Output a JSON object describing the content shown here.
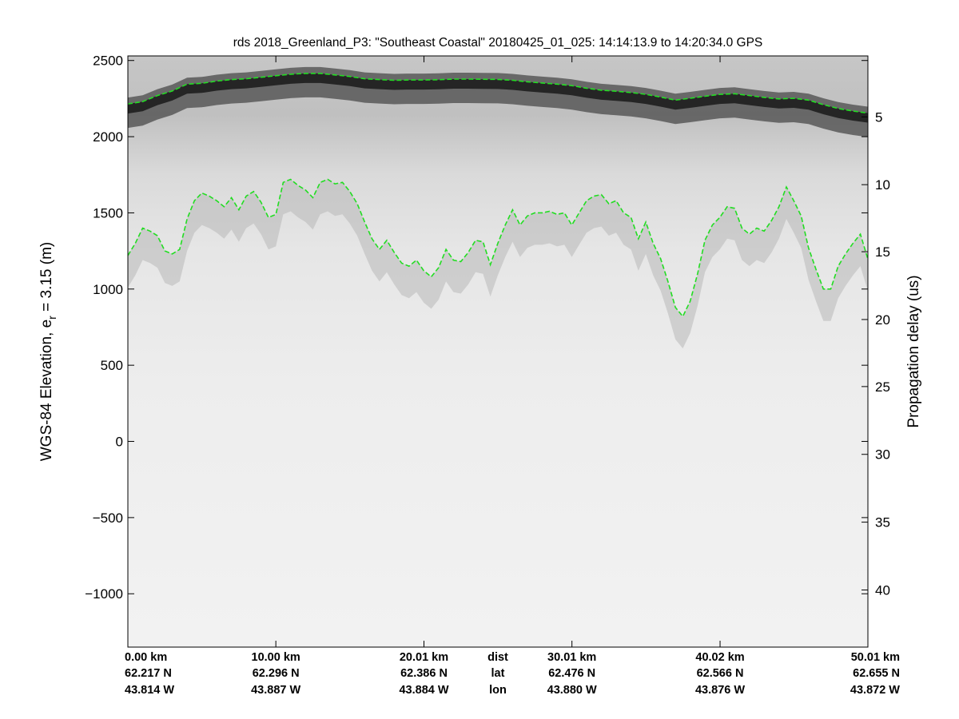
{
  "chart_data": {
    "type": "radar-echogram",
    "title": "rds 2018_Greenland_P3: \"Southeast Coastal\"  20180425_01_025: 14:14:13.9 to 14:20:34.0 GPS",
    "ylabel_main": "WGS-84 Elevation, e",
    "ylabel_sub": "r",
    "ylabel_tail": " = 3.15 (m)",
    "y2label": "Propagation delay (us)",
    "ylim": [
      -1350,
      2530
    ],
    "y_ticks": [
      2500,
      2000,
      1500,
      1000,
      500,
      0,
      -500,
      -1000
    ],
    "y_tick_labels": [
      "2500",
      "2000",
      "1500",
      "1000",
      "500",
      "0",
      "−500",
      "−1000"
    ],
    "delay_ticks": [
      {
        "label": "5",
        "elev": 2130
      },
      {
        "label": "10",
        "elev": 1685
      },
      {
        "label": "15",
        "elev": 1245
      },
      {
        "label": "20",
        "elev": 800
      },
      {
        "label": "25",
        "elev": 360
      },
      {
        "label": "30",
        "elev": -85
      },
      {
        "label": "35",
        "elev": -530
      },
      {
        "label": "40",
        "elev": -975
      }
    ],
    "xlim": [
      0,
      50.01
    ],
    "x_ticks": [
      {
        "x": 0.0,
        "dist": "0.00 km",
        "lat": "62.217 N",
        "lon": "43.814 W"
      },
      {
        "x": 10.0,
        "dist": "10.00 km",
        "lat": "62.296 N",
        "lon": "43.887 W"
      },
      {
        "x": 20.01,
        "dist": "20.01 km",
        "lat": "62.386 N",
        "lon": "43.884 W"
      },
      {
        "x": 30.01,
        "dist": "30.01 km",
        "lat": "62.476 N",
        "lon": "43.880 W"
      },
      {
        "x": 40.02,
        "dist": "40.02 km",
        "lat": "62.566 N",
        "lon": "43.876 W"
      },
      {
        "x": 50.01,
        "dist": "50.01 km",
        "lat": "62.655 N",
        "lon": "43.872 W"
      }
    ],
    "row_labels": {
      "dist": "dist",
      "lat": "lat",
      "lon": "lon"
    },
    "layer_color": "#22dd22",
    "series": [
      {
        "x": [
          0,
          1,
          2,
          3,
          4,
          5,
          6,
          7,
          8,
          9,
          10,
          11,
          12,
          13,
          14,
          15,
          16,
          17,
          18,
          19,
          20,
          21,
          22,
          23,
          24,
          25,
          26,
          27,
          28,
          29,
          30,
          31,
          32,
          33,
          34,
          35,
          36,
          37,
          38,
          39,
          40,
          41,
          42,
          43,
          44,
          45,
          46,
          47,
          48,
          49,
          50
        ],
        "values": [
          2215,
          2230,
          2270,
          2300,
          2345,
          2350,
          2365,
          2375,
          2380,
          2390,
          2400,
          2410,
          2415,
          2415,
          2405,
          2395,
          2380,
          2375,
          2370,
          2372,
          2372,
          2374,
          2378,
          2378,
          2377,
          2376,
          2370,
          2360,
          2352,
          2345,
          2335,
          2318,
          2305,
          2298,
          2290,
          2278,
          2260,
          2240,
          2252,
          2265,
          2278,
          2282,
          2270,
          2258,
          2248,
          2252,
          2240,
          2210,
          2185,
          2168,
          2155
        ]
      },
      {
        "x": [
          0,
          0.5,
          1,
          1.5,
          2,
          2.5,
          3,
          3.5,
          4,
          4.5,
          5,
          5.5,
          6,
          6.5,
          7,
          7.5,
          8,
          8.5,
          9,
          9.5,
          10,
          10.5,
          11,
          11.5,
          12,
          12.5,
          13,
          13.5,
          14,
          14.5,
          15,
          15.5,
          16,
          16.5,
          17,
          17.5,
          18,
          18.5,
          19,
          19.5,
          20,
          20.5,
          21,
          21.5,
          22,
          22.5,
          23,
          23.5,
          24,
          24.5,
          25,
          25.5,
          26,
          26.5,
          27,
          27.5,
          28,
          28.5,
          29,
          29.5,
          30,
          30.5,
          31,
          31.5,
          32,
          32.5,
          33,
          33.5,
          34,
          34.5,
          35,
          35.5,
          36,
          36.5,
          37,
          37.5,
          38,
          38.5,
          39,
          39.5,
          40,
          40.5,
          41,
          41.5,
          42,
          42.5,
          43,
          43.5,
          44,
          44.5,
          45,
          45.5,
          46,
          46.5,
          47,
          47.5,
          48,
          48.5,
          49,
          49.5,
          50
        ],
        "values": [
          1220,
          1300,
          1400,
          1380,
          1350,
          1250,
          1230,
          1260,
          1460,
          1580,
          1630,
          1610,
          1580,
          1540,
          1600,
          1520,
          1610,
          1640,
          1570,
          1470,
          1490,
          1700,
          1720,
          1680,
          1650,
          1600,
          1700,
          1720,
          1690,
          1700,
          1640,
          1560,
          1440,
          1330,
          1260,
          1320,
          1240,
          1170,
          1150,
          1190,
          1120,
          1080,
          1140,
          1260,
          1190,
          1180,
          1240,
          1320,
          1310,
          1160,
          1300,
          1420,
          1520,
          1420,
          1480,
          1500,
          1500,
          1510,
          1490,
          1500,
          1420,
          1500,
          1580,
          1610,
          1620,
          1560,
          1580,
          1500,
          1470,
          1330,
          1440,
          1300,
          1200,
          1050,
          880,
          820,
          920,
          1100,
          1320,
          1420,
          1470,
          1540,
          1530,
          1400,
          1360,
          1400,
          1380,
          1450,
          1540,
          1670,
          1580,
          1480,
          1270,
          1130,
          1000,
          1000,
          1150,
          1230,
          1300,
          1360,
          1200
        ]
      }
    ]
  }
}
